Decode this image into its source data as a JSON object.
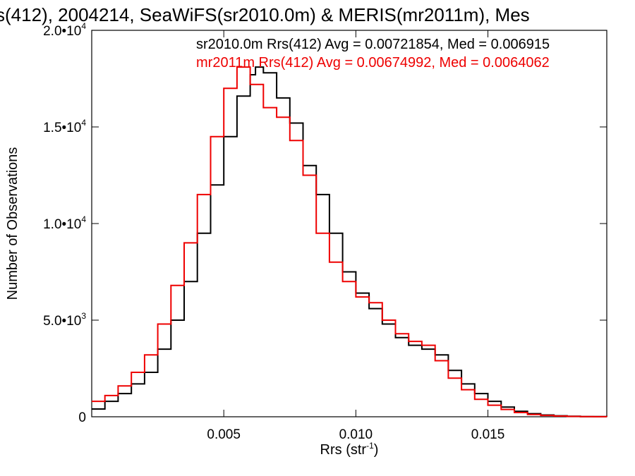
{
  "chart_data": {
    "type": "line",
    "title": "s(412), 2004214, SeaWiFS(sr2010.0m) & MERIS(mr2011m), Mes",
    "xlabel": "Rrs (str",
    "xlabel_sup": "-1",
    "xlabel_end": ")",
    "ylabel": "Number of Observations",
    "xlim": [
      0.0,
      0.0195
    ],
    "ylim": [
      0,
      20000
    ],
    "grid": false,
    "x_ticks": [
      {
        "value": 0.005,
        "label": "0.005"
      },
      {
        "value": 0.01,
        "label": "0.010"
      },
      {
        "value": 0.015,
        "label": "0.015"
      }
    ],
    "y_ticks": [
      {
        "value": 0,
        "mantissa": "0",
        "exp": ""
      },
      {
        "value": 5000,
        "mantissa": "5.0•10",
        "exp": "3"
      },
      {
        "value": 10000,
        "mantissa": "1.0•10",
        "exp": "4"
      },
      {
        "value": 15000,
        "mantissa": "1.5•10",
        "exp": "4"
      },
      {
        "value": 20000,
        "mantissa": "2.0•10",
        "exp": "4"
      }
    ],
    "annotations": [
      {
        "text": "sr2010.0m Rrs(412) Avg = 0.00721854, Med = 0.006915",
        "color": "#000000"
      },
      {
        "text": "mr2011m Rrs(412) Avg = 0.00674992, Med = 0.0064062",
        "color": "#ee0000"
      }
    ],
    "series": [
      {
        "color": "#000000",
        "x": [
          0.0,
          0.0005,
          0.001,
          0.0015,
          0.002,
          0.0025,
          0.003,
          0.0035,
          0.004,
          0.0045,
          0.005,
          0.0055,
          0.006,
          0.0062,
          0.0065,
          0.007,
          0.0075,
          0.008,
          0.0085,
          0.009,
          0.0095,
          0.01,
          0.0105,
          0.011,
          0.0115,
          0.012,
          0.0125,
          0.013,
          0.0135,
          0.014,
          0.0145,
          0.015,
          0.0155,
          0.016,
          0.0165,
          0.017,
          0.0175,
          0.018,
          0.0185,
          0.019,
          0.0195
        ],
        "y": [
          400,
          800,
          1200,
          1700,
          2300,
          3500,
          5000,
          7000,
          9500,
          12000,
          14500,
          16600,
          17700,
          18100,
          17800,
          16500,
          15200,
          13000,
          11500,
          9500,
          7500,
          6400,
          5600,
          4800,
          4100,
          3700,
          3500,
          3200,
          2400,
          1700,
          1200,
          800,
          500,
          280,
          160,
          90,
          50,
          25,
          12,
          6,
          2
        ]
      },
      {
        "color": "#ee0000",
        "x": [
          0.0,
          0.0005,
          0.001,
          0.0015,
          0.002,
          0.0025,
          0.003,
          0.0035,
          0.004,
          0.0045,
          0.005,
          0.0055,
          0.006,
          0.0065,
          0.007,
          0.0075,
          0.008,
          0.0085,
          0.009,
          0.0095,
          0.01,
          0.0105,
          0.011,
          0.0115,
          0.012,
          0.0125,
          0.013,
          0.0135,
          0.014,
          0.0145,
          0.015,
          0.0155,
          0.016,
          0.0165,
          0.017,
          0.0175,
          0.018,
          0.0185,
          0.019,
          0.0195
        ],
        "y": [
          800,
          1100,
          1600,
          2300,
          3200,
          4800,
          6800,
          9000,
          11500,
          14500,
          17000,
          18100,
          17200,
          16000,
          15500,
          14300,
          12500,
          9500,
          8000,
          7000,
          6200,
          5900,
          5000,
          4300,
          3900,
          3700,
          2900,
          2000,
          1400,
          900,
          600,
          380,
          220,
          120,
          70,
          35,
          18,
          9,
          4,
          1
        ]
      }
    ]
  }
}
